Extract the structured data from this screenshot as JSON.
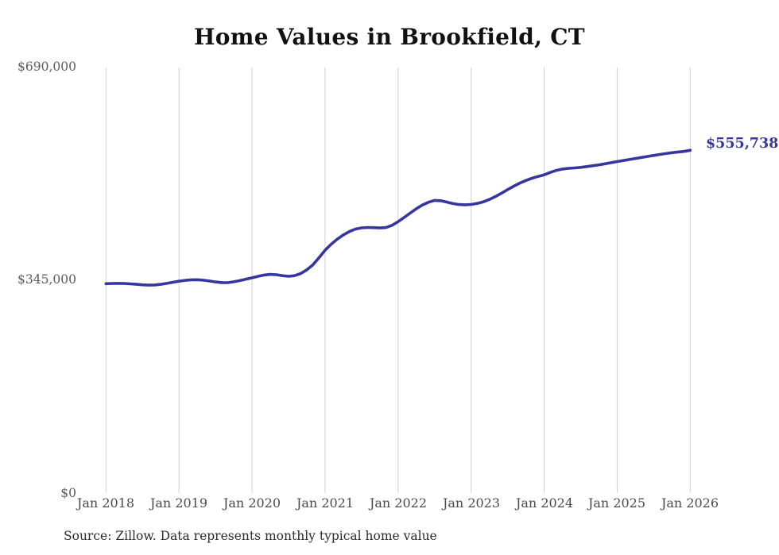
{
  "chart": {
    "title": "Home Values in Brookfield, CT",
    "end_label": "$555,738",
    "source_note": "Source: Zillow. Data represents monthly typical home value",
    "y_ticks": [
      "$690,000",
      "$345,000",
      "$0"
    ],
    "x_ticks": [
      "Jan 2018",
      "Jan 2019",
      "Jan 2020",
      "Jan 2021",
      "Jan 2022",
      "Jan 2023",
      "Jan 2024",
      "Jan 2025",
      "Jan 2026"
    ],
    "colors": {
      "line": "#3636a0",
      "grid": "#cfcfcf",
      "y_label_text": "#5a5a5a",
      "x_label_text": "#4a4a4a",
      "title_text": "#111111",
      "source_text": "#2b2b2b",
      "background": "#ffffff"
    }
  },
  "chart_data": {
    "type": "line",
    "title": "Home Values in Brookfield, CT",
    "xlabel": "",
    "ylabel": "",
    "x_unit": "month",
    "x_range": [
      "Jan 2018",
      "Jan 2026"
    ],
    "x_tick_labels": [
      "Jan 2018",
      "Jan 2019",
      "Jan 2020",
      "Jan 2021",
      "Jan 2022",
      "Jan 2023",
      "Jan 2024",
      "Jan 2025",
      "Jan 2026"
    ],
    "ylim": [
      0,
      690000
    ],
    "y_tick_values": [
      0,
      345000,
      690000
    ],
    "y_tick_labels": [
      "$0",
      "$345,000",
      "$690,000"
    ],
    "grid": "vertical-only",
    "legend": "none",
    "annotation": {
      "text": "$555,738",
      "position": "line-end",
      "value": 555738
    },
    "series": [
      {
        "name": "Typical home value (USD)",
        "start": "2018-01",
        "interval_months": 1,
        "values": [
          339500,
          339800,
          340000,
          339800,
          339200,
          338400,
          337600,
          337200,
          337400,
          338400,
          340000,
          341800,
          343400,
          344900,
          345800,
          345900,
          345100,
          343800,
          342300,
          341300,
          341100,
          342500,
          344500,
          346800,
          349000,
          351500,
          353500,
          354500,
          354000,
          352500,
          351500,
          352500,
          356000,
          362000,
          370000,
          381500,
          393700,
          403500,
          411500,
          418500,
          424000,
          428000,
          430000,
          430600,
          430300,
          429800,
          430500,
          434000,
          440000,
          447000,
          454000,
          461000,
          467000,
          471500,
          474500,
          474000,
          471800,
          469300,
          467800,
          467400,
          468000,
          469600,
          472200,
          476000,
          480800,
          486200,
          492000,
          497600,
          502600,
          506800,
          510400,
          513400,
          516000,
          519800,
          523200,
          525400,
          526500,
          527200,
          528100,
          529300,
          530700,
          532200,
          533800,
          535600,
          537400,
          539100,
          540800,
          542500,
          544200,
          545800,
          547400,
          549000,
          550500,
          551900,
          553000,
          553900,
          555738
        ]
      }
    ]
  }
}
